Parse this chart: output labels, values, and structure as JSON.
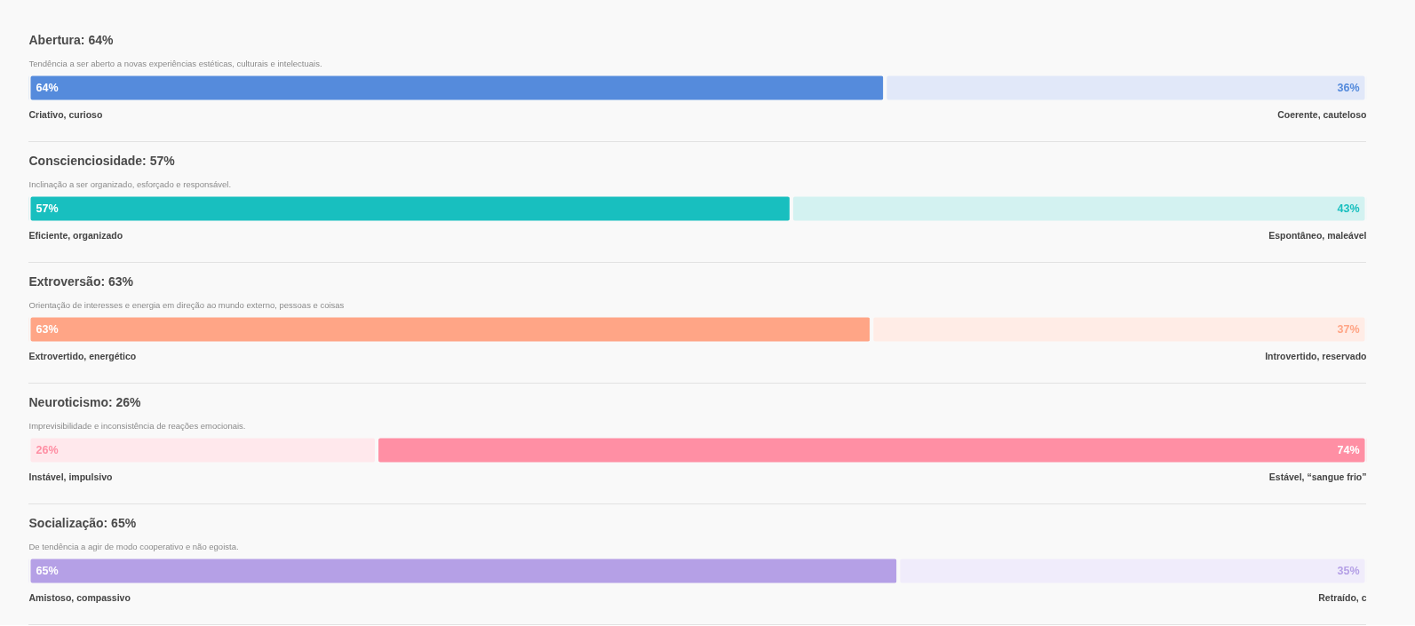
{
  "chart_data": [
    {
      "type": "bar",
      "orientation": "horizontal",
      "stacked": true,
      "title": "Abertura: 64%",
      "subtitle": "Tendência a ser aberto a novas experiências estéticas, culturais e intelectuais.",
      "categories": [
        null
      ],
      "xlim": [
        0,
        100
      ],
      "tick_labels": false,
      "series": [
        {
          "color": "#558bdc",
          "values": [
            64
          ],
          "value_labels": [
            "64%"
          ]
        },
        {
          "color": "#e1e8f9",
          "values": [
            36
          ],
          "value_labels": [
            "36%"
          ]
        }
      ],
      "annotations": [
        "Criativo, curioso",
        "Coerente, cauteloso"
      ]
    },
    {
      "type": "bar",
      "orientation": "horizontal",
      "stacked": true,
      "title": "Conscienciosidade: 57%",
      "subtitle": "Inclinação a ser organizado, esforçado e responsável.",
      "categories": [
        null
      ],
      "xlim": [
        0,
        100
      ],
      "tick_labels": false,
      "series": [
        {
          "color": "#18bfbf",
          "values": [
            57
          ],
          "value_labels": [
            "57%"
          ]
        },
        {
          "color": "#d3f2f1",
          "values": [
            43
          ],
          "value_labels": [
            "43%"
          ]
        }
      ],
      "annotations": [
        "Eficiente, organizado",
        "Espontâneo, maleável"
      ]
    },
    {
      "type": "bar",
      "orientation": "horizontal",
      "stacked": true,
      "title": "Extroversão: 63%",
      "subtitle": "Orientação de interesses e energia em direção ao mundo externo, pessoas e coisas",
      "categories": [
        null
      ],
      "xlim": [
        0,
        100
      ],
      "tick_labels": false,
      "series": [
        {
          "color": "#ffa586",
          "values": [
            63
          ],
          "value_labels": [
            "63%"
          ]
        },
        {
          "color": "#ffece6",
          "values": [
            37
          ],
          "value_labels": [
            "37%"
          ]
        }
      ],
      "annotations": [
        "Extrovertido, energético",
        "Introvertido, reservado"
      ]
    },
    {
      "type": "bar",
      "orientation": "horizontal",
      "stacked": true,
      "title": "Neuroticismo: 26%",
      "subtitle": "Imprevisibilidade e inconsistência de reações emocionais.",
      "categories": [
        null
      ],
      "xlim": [
        0,
        100
      ],
      "tick_labels": false,
      "series": [
        {
          "color": "#ffe8ec",
          "values": [
            26
          ],
          "value_labels": [
            "26%"
          ]
        },
        {
          "color": "#ff8fa4",
          "values": [
            74
          ],
          "value_labels": [
            "74%"
          ]
        }
      ],
      "annotations": [
        "Instável, impulsivo",
        "Estável, “sangue frio”"
      ]
    },
    {
      "type": "bar",
      "orientation": "horizontal",
      "stacked": true,
      "title": "Socialização: 65%",
      "subtitle": "De tendência a agir de modo cooperativo e não egoista.",
      "categories": [
        null
      ],
      "xlim": [
        0,
        100
      ],
      "tick_labels": false,
      "series": [
        {
          "color": "#b5a0e6",
          "values": [
            65
          ],
          "value_labels": [
            "65%"
          ]
        },
        {
          "color": "#f0ecfb",
          "values": [
            35
          ],
          "value_labels": [
            "35%"
          ]
        }
      ],
      "annotations": [
        "Amistoso, compassivo",
        "Retraído, c"
      ]
    }
  ]
}
